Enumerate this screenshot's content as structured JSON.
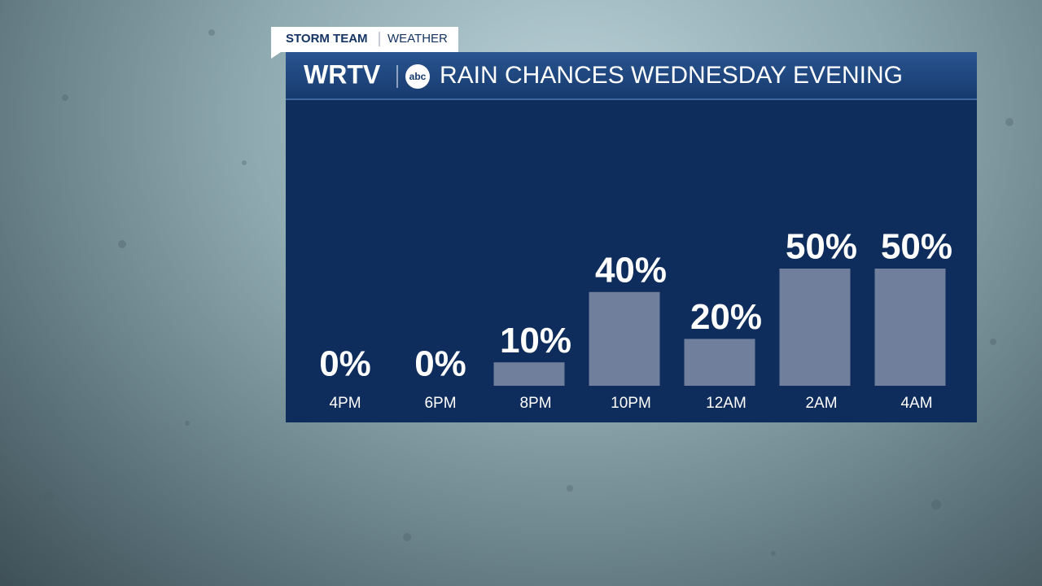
{
  "brand": {
    "tag": "STORM TEAM",
    "section": "WEATHER",
    "station": "WRTV",
    "network": "abc"
  },
  "chart_data": {
    "type": "bar",
    "title": "RAIN CHANCES WEDNESDAY EVENING",
    "categories": [
      "4PM",
      "6PM",
      "8PM",
      "10PM",
      "12AM",
      "2AM",
      "4AM"
    ],
    "values": [
      0,
      0,
      10,
      40,
      20,
      50,
      50
    ],
    "value_labels": [
      "0%",
      "0%",
      "10%",
      "40%",
      "20%",
      "50%",
      "50%"
    ],
    "color": "#6f7f9c"
  }
}
